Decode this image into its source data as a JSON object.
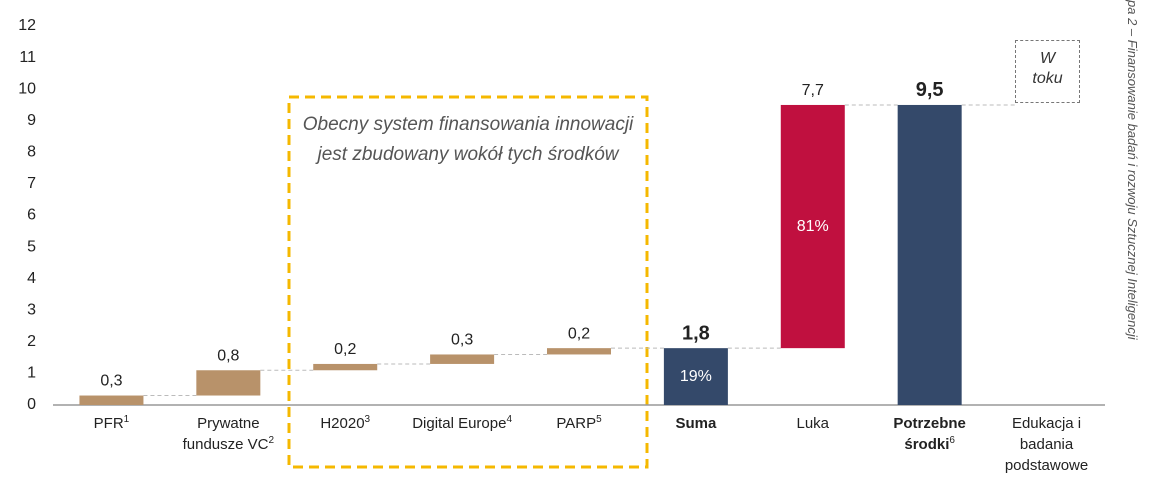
{
  "chart_data": {
    "type": "waterfall",
    "annotation": "Obecny system finansowania innowacji jest zbudowany wokół tych środków",
    "side_text": "pa 2 – Finansowanie badań i rozwoju Sztucznej Inteligencji",
    "pending_note": "W toku",
    "categories": [
      "PFR",
      "Prywatne fundusze VC",
      "H2020",
      "Digital Europe",
      "PARP",
      "Suma",
      "Luka",
      "Potrzebne środki",
      "Edukacja i badania podstawowe"
    ],
    "category_notes": [
      "1",
      "2",
      "3",
      "4",
      "5",
      null,
      null,
      "6",
      null
    ],
    "kinds": [
      "step",
      "step",
      "step",
      "step",
      "step",
      "total",
      "gap",
      "total",
      null
    ],
    "values": [
      0.3,
      0.8,
      0.2,
      0.3,
      0.2,
      1.8,
      7.7,
      9.5,
      null
    ],
    "value_labels": [
      "0,3",
      "0,8",
      "0,2",
      "0,3",
      "0,2",
      "1,8",
      "7,7",
      "9,5",
      null
    ],
    "share_values": [
      null,
      null,
      null,
      null,
      null,
      19,
      81,
      null,
      null
    ],
    "share_labels": [
      null,
      null,
      null,
      null,
      null,
      "19%",
      "81%",
      null,
      null
    ],
    "colors": [
      "#b8926a",
      "#b8926a",
      "#b8926a",
      "#b8926a",
      "#b8926a",
      "#34496a",
      "#c0103f",
      "#34496a",
      null
    ],
    "ylim": [
      0,
      12
    ],
    "yticks": [
      0,
      1,
      2,
      3,
      4,
      5,
      6,
      7,
      8,
      9,
      10,
      11,
      12
    ]
  }
}
